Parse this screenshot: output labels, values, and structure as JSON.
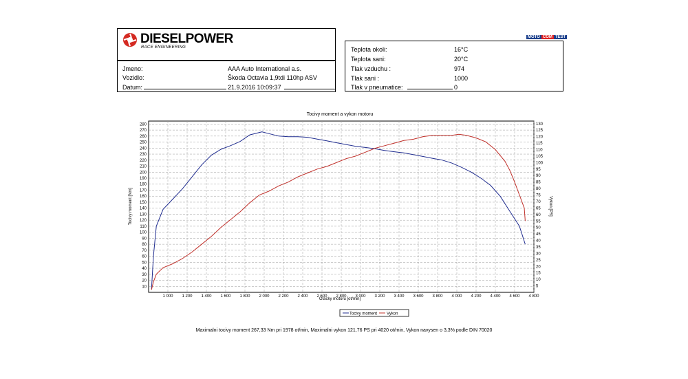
{
  "logo": {
    "brand": "DIESELPOWER",
    "tagline": "RACE ENGINEERING"
  },
  "badge": {
    "part1": "MOTO",
    "part2": "COM",
    "part3": "TEST"
  },
  "vehicle": {
    "rows": [
      {
        "label": "Jmeno:",
        "value": "AAA Auto International a.s."
      },
      {
        "label": "Vozidlo:",
        "value": "Škoda Octavia 1,9tdi 110hp ASV"
      },
      {
        "label": "Datum:",
        "value": "21.9.2016 10:09:37"
      }
    ]
  },
  "conditions": {
    "rows": [
      {
        "label": "Teplota okoli:",
        "value": "16°C"
      },
      {
        "label": "Teplota sani:",
        "value": "20°C"
      },
      {
        "label": "Tlak vzduchu :",
        "value": "974"
      },
      {
        "label": "Tlak sani :",
        "value": "1000"
      },
      {
        "label": "Tlak v pneumatice:",
        "value": "0"
      }
    ]
  },
  "colors": {
    "torque": "#1f2c8f",
    "power": "#c0302a",
    "grid": "#9a9a9a"
  },
  "chart_data": {
    "type": "line",
    "title": "Tocivy moment a vykon motoru",
    "xlabel": "Otacky motoru [ot/min]",
    "ylabel_left": "Tocivy moment [Nm]",
    "ylabel_right": "Vykon [PS]",
    "xlim": [
      800,
      4800
    ],
    "ylim_left": [
      0,
      285
    ],
    "ylim_right": [
      0,
      132
    ],
    "x_ticks": [
      "1 000",
      "1 200",
      "1 400",
      "1 600",
      "1 800",
      "2 000",
      "2 200",
      "2 400",
      "2 600",
      "2 800",
      "3 000",
      "3 200",
      "3 400",
      "3 600",
      "3 800",
      "4 000",
      "4 200",
      "4 400",
      "4 600",
      "4 800"
    ],
    "y_ticks_left": [
      10,
      20,
      30,
      40,
      50,
      60,
      70,
      80,
      90,
      100,
      110,
      120,
      130,
      140,
      150,
      160,
      170,
      180,
      190,
      200,
      210,
      220,
      230,
      240,
      250,
      260,
      270,
      280
    ],
    "y_ticks_right": [
      5,
      10,
      15,
      20,
      25,
      30,
      35,
      40,
      45,
      50,
      55,
      60,
      65,
      70,
      75,
      80,
      85,
      90,
      95,
      100,
      105,
      110,
      115,
      120,
      125,
      130
    ],
    "grid": true,
    "legend_position": "bottom-center",
    "series": [
      {
        "name": "Tocivy moment",
        "axis": "left",
        "x": [
          830,
          850,
          880,
          950,
          1050,
          1150,
          1250,
          1350,
          1450,
          1550,
          1650,
          1750,
          1850,
          1950,
          1978,
          2050,
          2150,
          2250,
          2350,
          2450,
          2550,
          2650,
          2750,
          2850,
          2950,
          3050,
          3150,
          3250,
          3350,
          3450,
          3550,
          3650,
          3750,
          3850,
          3950,
          4050,
          4150,
          4250,
          4350,
          4450,
          4550,
          4650,
          4710
        ],
        "y": [
          5,
          60,
          110,
          138,
          155,
          172,
          192,
          212,
          228,
          238,
          244,
          251,
          262,
          266,
          267,
          264,
          260,
          259,
          259,
          258,
          255,
          252,
          249,
          246,
          243,
          241,
          239,
          236,
          234,
          232,
          229,
          226,
          223,
          220,
          215,
          208,
          200,
          190,
          178,
          160,
          135,
          110,
          80
        ]
      },
      {
        "name": "Vykon",
        "axis": "right",
        "x": [
          830,
          850,
          880,
          950,
          1050,
          1150,
          1250,
          1350,
          1450,
          1550,
          1650,
          1750,
          1850,
          1950,
          2050,
          2150,
          2250,
          2350,
          2450,
          2550,
          2650,
          2750,
          2850,
          2950,
          3050,
          3150,
          3250,
          3350,
          3450,
          3550,
          3650,
          3750,
          3850,
          3950,
          4020,
          4100,
          4200,
          4300,
          4400,
          4500,
          4550,
          4600,
          4650,
          4700,
          4710
        ],
        "y": [
          2,
          8,
          14,
          19,
          22,
          26,
          31,
          37,
          43,
          50,
          56,
          62,
          69,
          75,
          78,
          82,
          85,
          89,
          92,
          95,
          97,
          100,
          103,
          105,
          108,
          111,
          113,
          115,
          117,
          118,
          120,
          121,
          121,
          121,
          121.8,
          121,
          119,
          116,
          110,
          101,
          94,
          85,
          75,
          65,
          55
        ]
      }
    ]
  },
  "legend": {
    "torque": "Tocivy moment",
    "power": "Vykon"
  },
  "footer": "Maximalni tocivy moment 267,33 Nm pri 1978 ot/min,  Maximalni vykon 121,76 PS pri 4020 ot/min,  Vykon navysen o 3,3% podle DIN 70020"
}
